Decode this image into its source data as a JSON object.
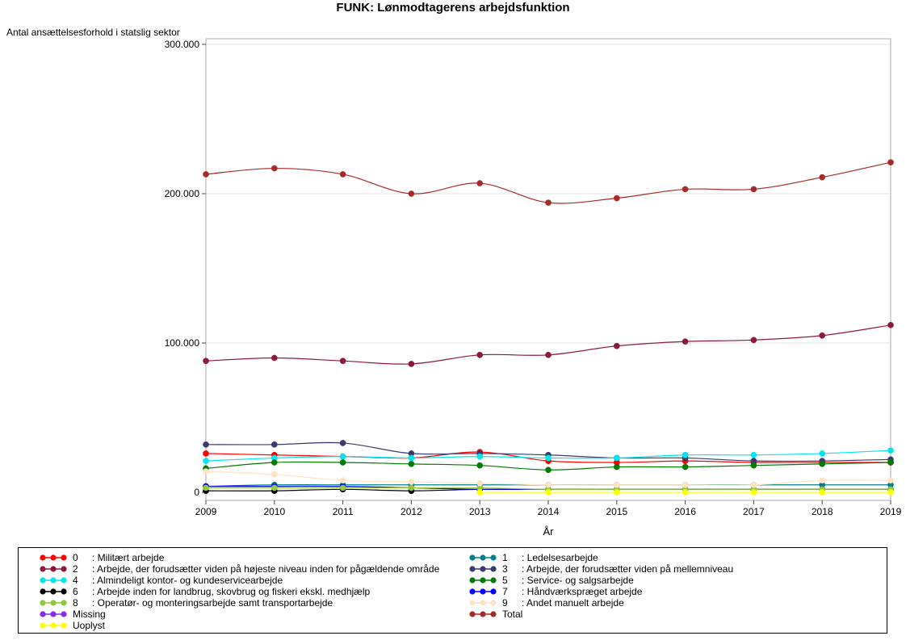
{
  "chart_data": {
    "type": "line",
    "title": "FUNK: Lønmodtagerens arbejdsfunktion",
    "ylabel": "Antal ansættelsesforhold i statslig sektor",
    "xlabel": "År",
    "x": [
      2009,
      2010,
      2011,
      2012,
      2013,
      2014,
      2015,
      2016,
      2017,
      2018,
      2019
    ],
    "xtick_labels": [
      "2009",
      "2010",
      "2011",
      "2012",
      "2013",
      "2014",
      "2015",
      "2016",
      "2017",
      "2018",
      "2019"
    ],
    "ylim": [
      0,
      300000
    ],
    "yticks": [
      0,
      100000,
      200000,
      300000
    ],
    "ytick_labels": [
      "0",
      "100.000",
      "200.000",
      "300.000"
    ],
    "grid": true,
    "legend_position": "bottom",
    "series": [
      {
        "code": "0",
        "name": "Militært arbejde",
        "color": "#ff0000",
        "values": [
          26000,
          25000,
          24000,
          23000,
          27000,
          21000,
          20000,
          21000,
          20000,
          20000,
          20000
        ]
      },
      {
        "code": "1",
        "name": "Ledelsesarbejde",
        "color": "#00808b",
        "values": [
          4000,
          5000,
          5000,
          5000,
          5000,
          5000,
          5000,
          5000,
          5000,
          5000,
          5000
        ]
      },
      {
        "code": "2",
        "name": "Arbejde, der forudsætter viden på højeste niveau inden for pågældende område",
        "color": "#8b1a3a",
        "values": [
          88000,
          90000,
          88000,
          86000,
          92000,
          92000,
          98000,
          101000,
          102000,
          105000,
          112000
        ]
      },
      {
        "code": "3",
        "name": "Arbejde, der forudsætter viden på mellemniveau",
        "color": "#3a3a6e",
        "values": [
          32000,
          32000,
          33000,
          26000,
          26000,
          25000,
          23000,
          23000,
          21000,
          21000,
          22000
        ]
      },
      {
        "code": "4",
        "name": "Almindeligt kontor- og kundeservicearbejde",
        "color": "#00e5ee",
        "values": [
          21000,
          23000,
          24000,
          23000,
          24000,
          23000,
          23000,
          25000,
          25000,
          26000,
          28000
        ]
      },
      {
        "code": "5",
        "name": "Service- og salgsarbejde",
        "color": "#007a00",
        "values": [
          16000,
          20000,
          20000,
          19000,
          18000,
          15000,
          17000,
          17000,
          18000,
          19000,
          20000
        ]
      },
      {
        "code": "6",
        "name": "Arbejde inden for landbrug, skovbrug og fiskeri ekskl. medhjælp",
        "color": "#000000",
        "values": [
          1000,
          1000,
          2000,
          1000,
          2000,
          2000,
          2000,
          2000,
          2000,
          2000,
          2000
        ]
      },
      {
        "code": "7",
        "name": "Håndværkspræget arbejde",
        "color": "#0000ff",
        "values": [
          4000,
          4000,
          4000,
          3000,
          2000,
          2000,
          2000,
          2000,
          2000,
          2000,
          2000
        ]
      },
      {
        "code": "8",
        "name": "Operatør- og monteringsarbejde samt transportarbejde",
        "color": "#92c83e",
        "values": [
          3000,
          3000,
          3000,
          3000,
          3000,
          2000,
          2000,
          2000,
          2000,
          2000,
          2000
        ]
      },
      {
        "code": "9",
        "name": "Andet manuelt arbejde",
        "color": "#fce4c4",
        "values": [
          14000,
          12000,
          8000,
          7000,
          6000,
          5000,
          5000,
          5000,
          5000,
          8000,
          8000
        ]
      },
      {
        "code": "",
        "name": "Missing",
        "color": "#8a2be2",
        "values": [
          null,
          null,
          null,
          null,
          null,
          null,
          null,
          null,
          null,
          null,
          null
        ]
      },
      {
        "code": "",
        "name": "Total",
        "color": "#a52a2a",
        "values": [
          213000,
          217000,
          213000,
          200000,
          207000,
          194000,
          197000,
          203000,
          203000,
          211000,
          221000
        ]
      },
      {
        "code": "",
        "name": "Uoplyst",
        "color": "#ffff00",
        "values": [
          null,
          null,
          null,
          null,
          0,
          0,
          0,
          0,
          0,
          0,
          0
        ]
      }
    ]
  },
  "legend": {
    "separator": ":"
  }
}
